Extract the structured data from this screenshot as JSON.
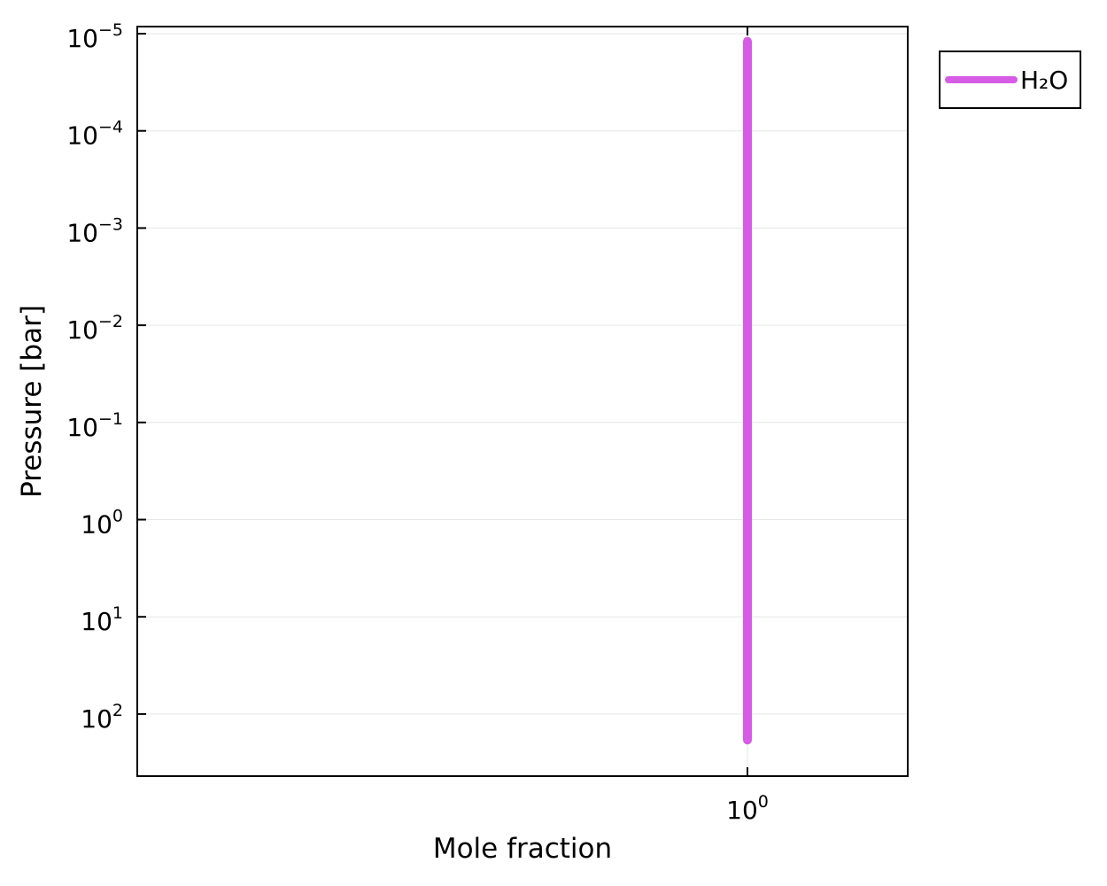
{
  "chart_data": {
    "type": "line",
    "title": "",
    "xlabel": "Mole fraction",
    "ylabel": "Pressure [bar]",
    "x_scale": "log",
    "y_scale": "log",
    "y_reversed": true,
    "grid": true,
    "legend_position": "outside-top-right",
    "x_ticks": [
      {
        "value": 1,
        "base": "10",
        "exp": "0"
      }
    ],
    "y_ticks": [
      {
        "value": 1e-05,
        "base": "10",
        "exp": "−5"
      },
      {
        "value": 0.0001,
        "base": "10",
        "exp": "−4"
      },
      {
        "value": 0.001,
        "base": "10",
        "exp": "−3"
      },
      {
        "value": 0.01,
        "base": "10",
        "exp": "−2"
      },
      {
        "value": 0.1,
        "base": "10",
        "exp": "−1"
      },
      {
        "value": 1,
        "base": "10",
        "exp": "0"
      },
      {
        "value": 10,
        "base": "10",
        "exp": "1"
      },
      {
        "value": 100,
        "base": "10",
        "exp": "2"
      }
    ],
    "series": [
      {
        "name": "H₂O",
        "color": "#d65ce6",
        "x": [
          1,
          1
        ],
        "y": [
          1.2e-05,
          185
        ]
      }
    ]
  }
}
